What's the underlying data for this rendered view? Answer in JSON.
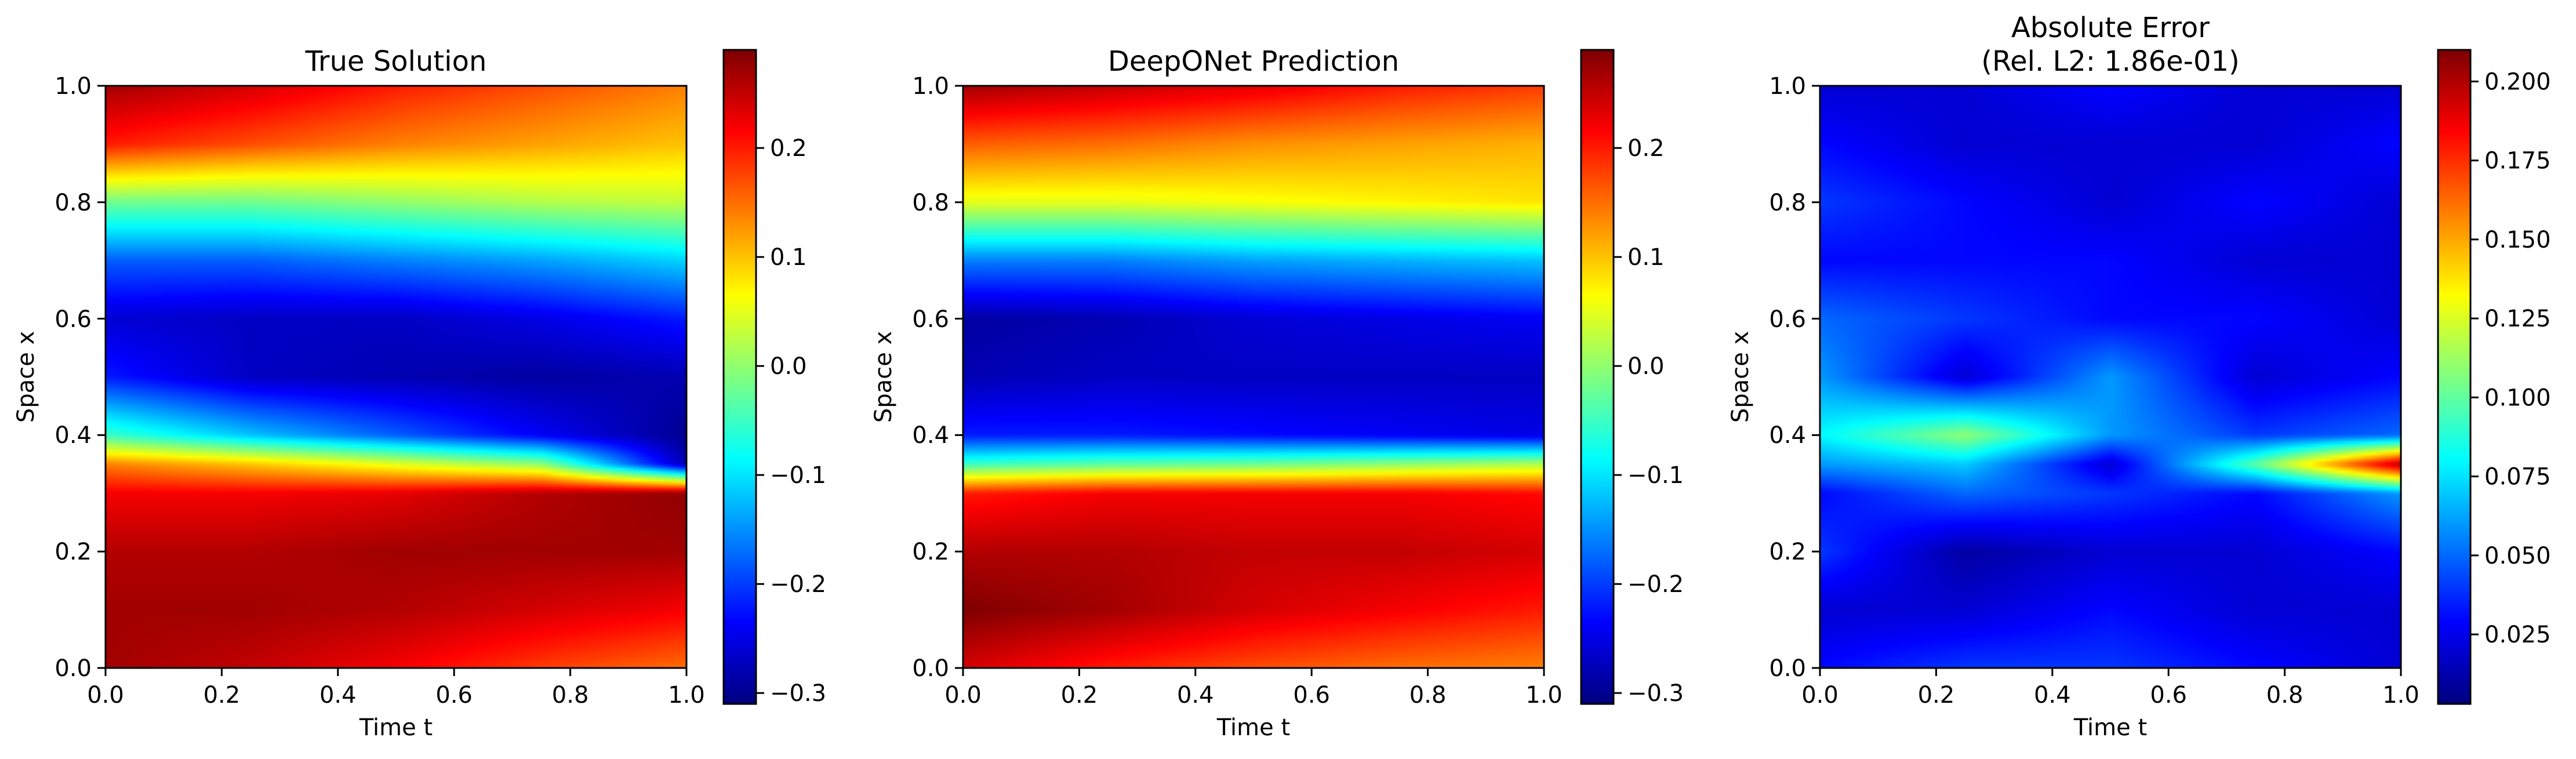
{
  "chart_data": [
    {
      "type": "heatmap",
      "title": "True Solution",
      "xlabel": "Time t",
      "ylabel": "Space x",
      "xlim": [
        0,
        1
      ],
      "ylim": [
        0,
        1
      ],
      "xticks": [
        "0.0",
        "0.2",
        "0.4",
        "0.6",
        "0.8",
        "1.0"
      ],
      "yticks": [
        "0.0",
        "0.2",
        "0.4",
        "0.6",
        "0.8",
        "1.0"
      ],
      "colormap": "jet",
      "vmin": -0.31,
      "vmax": 0.29,
      "colorbar_ticks": [
        -0.3,
        -0.2,
        -0.1,
        0.0,
        0.1,
        0.2
      ],
      "colorbar_labels": [
        "−0.3",
        "−0.2",
        "−0.1",
        "0.0",
        "0.1",
        "0.2"
      ],
      "field": {
        "t": [
          0.0,
          0.25,
          0.5,
          0.75,
          1.0
        ],
        "x": [
          0.0,
          0.1,
          0.2,
          0.3,
          0.35,
          0.4,
          0.5,
          0.6,
          0.7,
          0.8,
          0.9,
          1.0
        ],
        "values": [
          [
            0.27,
            0.27,
            0.26,
            0.22,
            0.14,
            -0.05,
            -0.22,
            -0.26,
            -0.18,
            -0.02,
            0.2,
            0.27
          ],
          [
            0.25,
            0.27,
            0.26,
            0.22,
            0.1,
            -0.12,
            -0.27,
            -0.27,
            -0.18,
            -0.02,
            0.17,
            0.24
          ],
          [
            0.22,
            0.26,
            0.27,
            0.23,
            0.05,
            -0.18,
            -0.28,
            -0.27,
            -0.16,
            0.0,
            0.14,
            0.2
          ],
          [
            0.18,
            0.24,
            0.27,
            0.26,
            0.0,
            -0.24,
            -0.29,
            -0.25,
            -0.14,
            0.02,
            0.12,
            0.17
          ],
          [
            0.15,
            0.22,
            0.27,
            0.28,
            -0.28,
            -0.3,
            -0.28,
            -0.22,
            -0.11,
            0.03,
            0.1,
            0.14
          ]
        ]
      }
    },
    {
      "type": "heatmap",
      "title": "DeepONet Prediction",
      "xlabel": "Time t",
      "ylabel": "Space x",
      "xlim": [
        0,
        1
      ],
      "ylim": [
        0,
        1
      ],
      "xticks": [
        "0.0",
        "0.2",
        "0.4",
        "0.6",
        "0.8",
        "1.0"
      ],
      "yticks": [
        "0.0",
        "0.2",
        "0.4",
        "0.6",
        "0.8",
        "1.0"
      ],
      "colormap": "jet",
      "vmin": -0.31,
      "vmax": 0.29,
      "colorbar_ticks": [
        -0.3,
        -0.2,
        -0.1,
        0.0,
        0.1,
        0.2
      ],
      "colorbar_labels": [
        "−0.3",
        "−0.2",
        "−0.1",
        "0.0",
        "0.1",
        "0.2"
      ],
      "field": {
        "t": [
          0.0,
          0.25,
          0.5,
          0.75,
          1.0
        ],
        "x": [
          0.0,
          0.1,
          0.2,
          0.3,
          0.35,
          0.4,
          0.5,
          0.6,
          0.7,
          0.8,
          0.9,
          1.0
        ],
        "values": [
          [
            0.24,
            0.29,
            0.26,
            0.2,
            -0.05,
            -0.22,
            -0.28,
            -0.29,
            -0.16,
            0.05,
            0.16,
            0.27
          ],
          [
            0.2,
            0.27,
            0.26,
            0.22,
            -0.03,
            -0.22,
            -0.27,
            -0.28,
            -0.16,
            0.05,
            0.15,
            0.25
          ],
          [
            0.17,
            0.24,
            0.25,
            0.22,
            -0.02,
            -0.23,
            -0.27,
            -0.26,
            -0.14,
            0.06,
            0.13,
            0.23
          ],
          [
            0.15,
            0.22,
            0.25,
            0.22,
            0.0,
            -0.24,
            -0.27,
            -0.25,
            -0.13,
            0.07,
            0.12,
            0.2
          ],
          [
            0.14,
            0.2,
            0.24,
            0.21,
            0.02,
            -0.25,
            -0.27,
            -0.24,
            -0.12,
            0.08,
            0.11,
            0.18
          ]
        ]
      }
    },
    {
      "type": "heatmap",
      "title": "Absolute Error\n(Rel. L2: 1.86e-01)",
      "title_lines": [
        "Absolute Error",
        "(Rel. L2: 1.86e-01)"
      ],
      "xlabel": "Time t",
      "ylabel": "Space x",
      "xlim": [
        0,
        1
      ],
      "ylim": [
        0,
        1
      ],
      "xticks": [
        "0.0",
        "0.2",
        "0.4",
        "0.6",
        "0.8",
        "1.0"
      ],
      "yticks": [
        "0.0",
        "0.2",
        "0.4",
        "0.6",
        "0.8",
        "1.0"
      ],
      "colormap": "jet",
      "vmin": 0.003,
      "vmax": 0.21,
      "colorbar_ticks": [
        0.025,
        0.05,
        0.075,
        0.1,
        0.125,
        0.15,
        0.175,
        0.2
      ],
      "colorbar_labels": [
        "0.025",
        "0.050",
        "0.075",
        "0.100",
        "0.125",
        "0.150",
        "0.175",
        "0.200"
      ],
      "field": {
        "t": [
          0.0,
          0.25,
          0.5,
          0.75,
          1.0
        ],
        "x": [
          0.0,
          0.1,
          0.2,
          0.3,
          0.35,
          0.4,
          0.5,
          0.6,
          0.7,
          0.8,
          0.9,
          1.0
        ],
        "values": [
          [
            0.03,
            0.02,
            0.04,
            0.03,
            0.06,
            0.08,
            0.06,
            0.05,
            0.03,
            0.04,
            0.03,
            0.02
          ],
          [
            0.04,
            0.02,
            0.01,
            0.05,
            0.07,
            0.11,
            0.02,
            0.04,
            0.03,
            0.03,
            0.02,
            0.02
          ],
          [
            0.04,
            0.03,
            0.02,
            0.04,
            0.02,
            0.06,
            0.06,
            0.03,
            0.03,
            0.02,
            0.02,
            0.03
          ],
          [
            0.03,
            0.02,
            0.02,
            0.03,
            0.1,
            0.04,
            0.02,
            0.03,
            0.02,
            0.03,
            0.02,
            0.02
          ],
          [
            0.02,
            0.02,
            0.03,
            0.06,
            0.2,
            0.05,
            0.03,
            0.02,
            0.02,
            0.02,
            0.03,
            0.02
          ]
        ]
      }
    }
  ]
}
